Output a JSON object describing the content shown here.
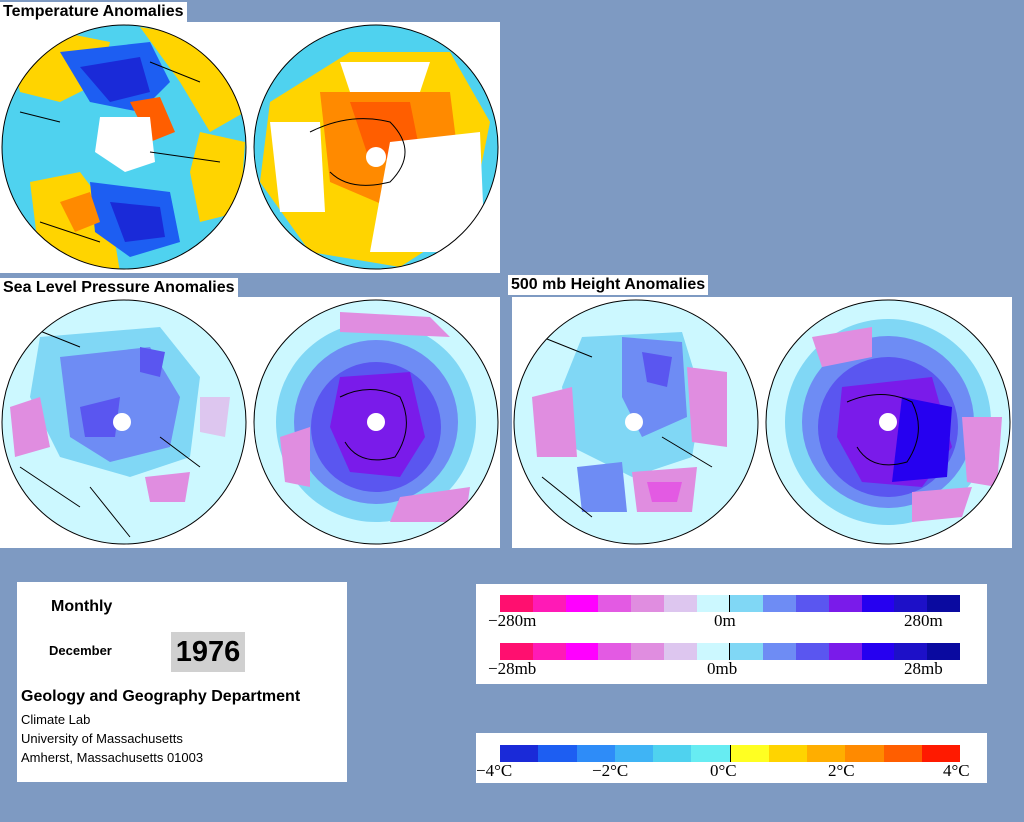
{
  "titles": {
    "temperature": "Temperature Anomalies",
    "slp": "Sea Level Pressure Anomalies",
    "height": "500 mb Height Anomalies"
  },
  "info": {
    "monthly": "Monthly",
    "month": "December",
    "year": "1976",
    "department": "Geology and Geography Department",
    "lab": "Climate Lab",
    "university": "University of Massachusetts",
    "address": "Amherst, Massachusetts 01003"
  },
  "legend_anomaly": {
    "colors": [
      "#ff0f6f",
      "#ff1ab6",
      "#ff00ff",
      "#e35ae3",
      "#e08de0",
      "#ddc6ef",
      "#ccf8ff",
      "#80d7f5",
      "#6e8cf4",
      "#5a56f0",
      "#7a1bea",
      "#2600f0",
      "#1d10c8",
      "#0a0aa0"
    ],
    "height_ticks": [
      "−280m",
      "0m",
      "280m"
    ],
    "slp_ticks": [
      "−28mb",
      "0mb",
      "28mb"
    ]
  },
  "legend_temp": {
    "colors": [
      "#1a2ad8",
      "#1d5ef2",
      "#2e8cf8",
      "#3fb4f5",
      "#4fd2ef",
      "#67ecf2",
      "#ffff22",
      "#ffd400",
      "#ffae00",
      "#ff8a00",
      "#ff5e00",
      "#ff1a00"
    ],
    "ticks": [
      "−4°C",
      "−2°C",
      "0°C",
      "2°C",
      "4°C"
    ]
  }
}
